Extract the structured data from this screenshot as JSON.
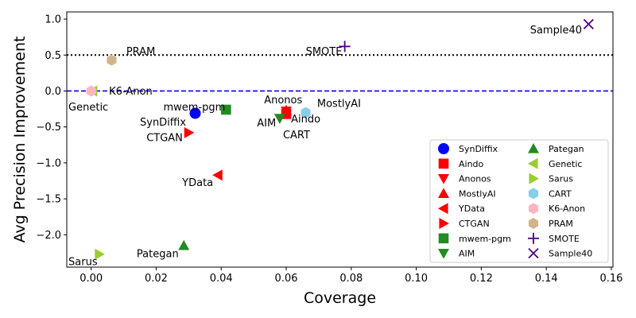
{
  "chart_data": {
    "type": "scatter",
    "title": "",
    "xlabel": "Coverage",
    "ylabel": "Avg Precision Improvement",
    "xlim": [
      -0.0075,
      0.1605
    ],
    "ylim": [
      -2.45,
      1.1
    ],
    "xticks": [
      0.0,
      0.02,
      0.04,
      0.06,
      0.08,
      0.1,
      0.12,
      0.14,
      0.16
    ],
    "xtick_labels": [
      "0.00",
      "0.02",
      "0.04",
      "0.06",
      "0.08",
      "0.10",
      "0.12",
      "0.14",
      "0.16"
    ],
    "yticks": [
      -2.0,
      -1.5,
      -1.0,
      -0.5,
      0.0,
      0.5,
      1.0
    ],
    "ytick_labels": [
      "−2.0",
      "−1.5",
      "−1.0",
      "−0.5",
      "0.0",
      "0.5",
      "1.0"
    ],
    "reference_lines": [
      {
        "y": 0.0,
        "style": "dashed",
        "color": "#0000ff"
      },
      {
        "y": 0.5,
        "style": "dotted",
        "color": "#000000"
      }
    ],
    "legend_position": "lower-right",
    "legend_columns": 2,
    "series": [
      {
        "name": "SynDiffix",
        "marker": "circle",
        "color": "#0000ff",
        "x": 0.032,
        "y": -0.31
      },
      {
        "name": "Aindo",
        "marker": "square",
        "color": "#ff0000",
        "x": 0.06,
        "y": -0.32
      },
      {
        "name": "Anonos",
        "marker": "triangle-down",
        "color": "#ff0000",
        "x": 0.06,
        "y": -0.28
      },
      {
        "name": "MostlyAI",
        "marker": "triangle-up",
        "color": "#ff0000",
        "x": 0.06,
        "y": -0.27
      },
      {
        "name": "YData",
        "marker": "triangle-left",
        "color": "#ff0000",
        "x": 0.039,
        "y": -1.17
      },
      {
        "name": "CTGAN",
        "marker": "triangle-right",
        "color": "#ff0000",
        "x": 0.03,
        "y": -0.58
      },
      {
        "name": "mwem-pgm",
        "marker": "square",
        "color": "#228b22",
        "x": 0.0415,
        "y": -0.26
      },
      {
        "name": "AIM",
        "marker": "triangle-down",
        "color": "#228b22",
        "x": 0.058,
        "y": -0.38
      },
      {
        "name": "Pategan",
        "marker": "triangle-up",
        "color": "#228b22",
        "x": 0.0285,
        "y": -2.15
      },
      {
        "name": "Genetic",
        "marker": "triangle-left",
        "color": "#9acd32",
        "x": 0.0005,
        "y": 0.0
      },
      {
        "name": "Sarus",
        "marker": "triangle-right",
        "color": "#9acd32",
        "x": 0.0025,
        "y": -2.27
      },
      {
        "name": "CART",
        "marker": "hexagon",
        "color": "#87ceeb",
        "x": 0.066,
        "y": -0.3
      },
      {
        "name": "K6-Anon",
        "marker": "hexagon",
        "color": "#ffb6c1",
        "x": 0.0,
        "y": 0.0
      },
      {
        "name": "PRAM",
        "marker": "hexagon",
        "color": "#d2b48c",
        "x": 0.0063,
        "y": 0.43
      },
      {
        "name": "SMOTE",
        "marker": "plus",
        "color": "#4b0082",
        "x": 0.078,
        "y": 0.62
      },
      {
        "name": "Sample40",
        "marker": "x",
        "color": "#4b0082",
        "x": 0.153,
        "y": 0.93
      }
    ],
    "annotations": [
      {
        "text": "Genetic",
        "x": -0.007,
        "y": -0.22
      },
      {
        "text": "K6-Anon",
        "x": 0.0055,
        "y": 0.0
      },
      {
        "text": "PRAM",
        "x": 0.0108,
        "y": 0.55
      },
      {
        "text": "mwem-pgm",
        "x": 0.0222,
        "y": -0.22
      },
      {
        "text": "SynDiffix",
        "x": 0.015,
        "y": -0.43
      },
      {
        "text": "CTGAN",
        "x": 0.017,
        "y": -0.65
      },
      {
        "text": "YData",
        "x": 0.028,
        "y": -1.27
      },
      {
        "text": "Pategan",
        "x": 0.014,
        "y": -2.26
      },
      {
        "text": "Sarus",
        "x": -0.007,
        "y": -2.37
      },
      {
        "text": "Anonos",
        "x": 0.0532,
        "y": -0.12
      },
      {
        "text": "MostlyAI",
        "x": 0.0695,
        "y": -0.17
      },
      {
        "text": "Aindo",
        "x": 0.0615,
        "y": -0.39
      },
      {
        "text": "AIM",
        "x": 0.051,
        "y": -0.44
      },
      {
        "text": "CART",
        "x": 0.059,
        "y": -0.61
      },
      {
        "text": "SMOTE",
        "x": 0.066,
        "y": 0.55
      },
      {
        "text": "Sample40",
        "x": 0.135,
        "y": 0.85
      }
    ]
  }
}
